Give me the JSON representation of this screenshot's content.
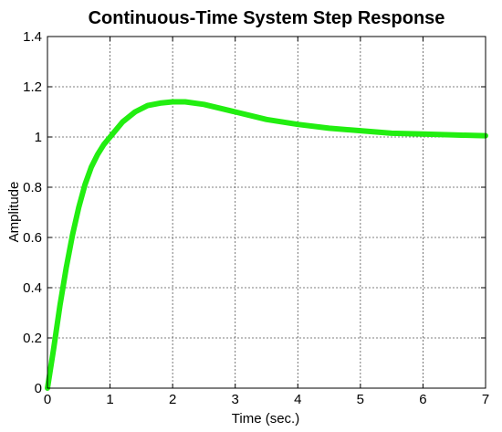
{
  "chart_data": {
    "type": "line",
    "title": "Continuous-Time System Step Response",
    "xlabel": "Time (sec.)",
    "ylabel": "Amplitude",
    "xlim": [
      0,
      7
    ],
    "ylim": [
      0,
      1.4
    ],
    "xticks": [
      "0",
      "1",
      "2",
      "3",
      "4",
      "5",
      "6",
      "7"
    ],
    "yticks": [
      "0",
      "0.2",
      "0.4",
      "0.6",
      "0.8",
      "1",
      "1.2",
      "1.4"
    ],
    "grid": true,
    "line_color": "#22ee11",
    "series": [
      {
        "x": [
          0,
          0.1,
          0.2,
          0.3,
          0.4,
          0.5,
          0.6,
          0.7,
          0.8,
          0.9,
          1.0,
          1.2,
          1.4,
          1.6,
          1.8,
          2.0,
          2.2,
          2.5,
          3.0,
          3.5,
          4.0,
          4.5,
          5.0,
          5.5,
          6.0,
          6.5,
          7.0
        ],
        "values": [
          0,
          0.16,
          0.33,
          0.48,
          0.61,
          0.72,
          0.81,
          0.88,
          0.93,
          0.97,
          1.0,
          1.06,
          1.1,
          1.125,
          1.135,
          1.14,
          1.14,
          1.13,
          1.1,
          1.07,
          1.05,
          1.035,
          1.025,
          1.015,
          1.012,
          1.008,
          1.005
        ]
      }
    ]
  }
}
